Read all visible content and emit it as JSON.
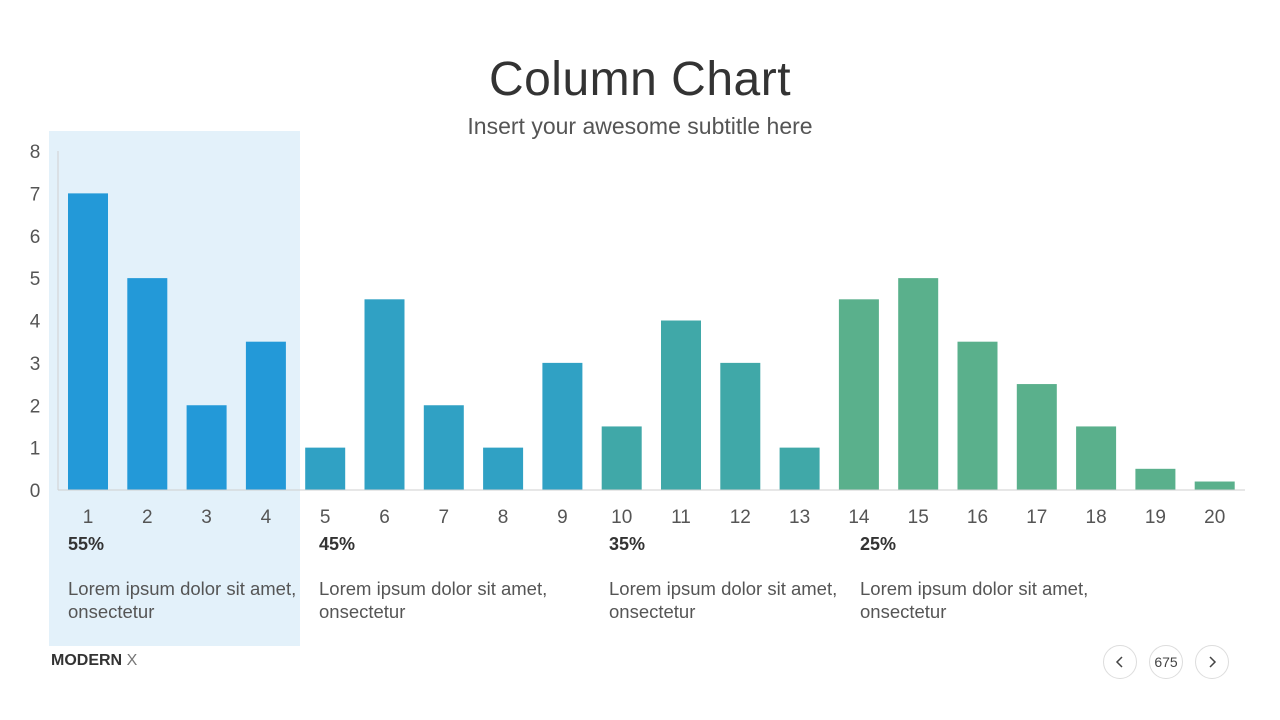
{
  "title": "Column Chart",
  "subtitle": "Insert your awesome subtitle here",
  "chart_data": {
    "type": "bar",
    "categories": [
      "1",
      "2",
      "3",
      "4",
      "5",
      "6",
      "7",
      "8",
      "9",
      "10",
      "11",
      "12",
      "13",
      "14",
      "15",
      "16",
      "17",
      "18",
      "19",
      "20"
    ],
    "values": [
      7,
      5,
      2,
      3.5,
      1,
      4.5,
      2,
      1,
      3,
      1.5,
      4,
      3,
      1,
      4.5,
      5,
      3.5,
      2.5,
      1.5,
      0.5,
      0.2
    ],
    "colors": [
      "#2399d8",
      "#2399d8",
      "#2399d8",
      "#2399d8",
      "#30a1c4",
      "#30a1c4",
      "#30a1c4",
      "#30a1c4",
      "#30a1c4",
      "#40a8a8",
      "#40a8a8",
      "#40a8a8",
      "#40a8a8",
      "#5ab08c",
      "#5ab08c",
      "#5ab08c",
      "#5ab08c",
      "#5ab08c",
      "#5ab08c",
      "#5ab08c"
    ],
    "yticks": [
      "0",
      "1",
      "2",
      "3",
      "4",
      "5",
      "6",
      "7",
      "8"
    ],
    "ylim": [
      0,
      8
    ],
    "highlight_color": "#e3f1fa"
  },
  "groups": [
    {
      "pct": "55%",
      "desc": "Lorem ipsum dolor sit amet, onsectetur"
    },
    {
      "pct": "45%",
      "desc": "Lorem ipsum dolor sit amet, onsectetur"
    },
    {
      "pct": "35%",
      "desc": "Lorem ipsum dolor sit amet, onsectetur"
    },
    {
      "pct": "25%",
      "desc": "Lorem ipsum dolor sit amet, onsectetur"
    }
  ],
  "footer": {
    "brand_bold": "MODERN",
    "brand_light": "X",
    "page_number": "675"
  },
  "icons": {
    "prev": "chevron-left-icon",
    "next": "chevron-right-icon"
  }
}
